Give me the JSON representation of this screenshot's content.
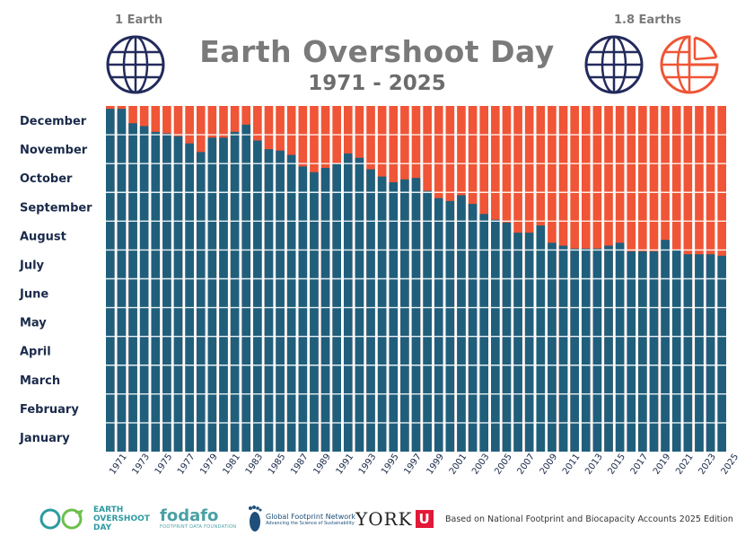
{
  "header": {
    "title": "Earth Overshoot Day",
    "subtitle": "1971 - 2025",
    "left_globe_label": "1 Earth",
    "right_globe_label": "1.8 Earths"
  },
  "colors": {
    "budget": "#1f5f7c",
    "overshoot": "#ef5536",
    "globe_navy": "#232b5c",
    "title_gray": "#7a7a7a"
  },
  "chart_data": {
    "type": "bar",
    "title": "Earth Overshoot Day",
    "subtitle": "1971 - 2025",
    "xlabel": "",
    "ylabel": "",
    "y_unit": "month of year (0 = 1 January, 12 = 31 December)",
    "ylim": [
      0,
      12
    ],
    "y_tick_labels": [
      "January",
      "February",
      "March",
      "April",
      "May",
      "June",
      "July",
      "August",
      "September",
      "October",
      "November",
      "December"
    ],
    "x_tick_labels": [
      "1971",
      "1973",
      "1975",
      "1977",
      "1979",
      "1981",
      "1983",
      "1985",
      "1987",
      "1989",
      "1991",
      "1993",
      "1995",
      "1997",
      "1999",
      "2001",
      "2003",
      "2005",
      "2007",
      "2009",
      "2011",
      "2013",
      "2015",
      "2017",
      "2019",
      "2021",
      "2023",
      "2025"
    ],
    "x": [
      1971,
      1972,
      1973,
      1974,
      1975,
      1976,
      1977,
      1978,
      1979,
      1980,
      1981,
      1982,
      1983,
      1984,
      1985,
      1986,
      1987,
      1988,
      1989,
      1990,
      1991,
      1992,
      1993,
      1994,
      1995,
      1996,
      1997,
      1998,
      1999,
      2000,
      2001,
      2002,
      2003,
      2004,
      2005,
      2006,
      2007,
      2008,
      2009,
      2010,
      2011,
      2012,
      2013,
      2014,
      2015,
      2016,
      2017,
      2018,
      2019,
      2020,
      2021,
      2022,
      2023,
      2024,
      2025
    ],
    "series": [
      {
        "name": "",
        "color": "#1f5f7c",
        "values": [
          11.9,
          11.9,
          11.4,
          11.3,
          11.1,
          11.05,
          10.95,
          10.7,
          10.4,
          10.9,
          10.9,
          11.1,
          11.35,
          10.8,
          10.5,
          10.45,
          10.3,
          9.9,
          9.7,
          9.85,
          10.0,
          10.35,
          10.2,
          9.8,
          9.55,
          9.35,
          9.45,
          9.5,
          9.05,
          8.8,
          8.7,
          8.9,
          8.6,
          8.25,
          8.05,
          7.95,
          7.6,
          7.6,
          7.85,
          7.25,
          7.15,
          7.05,
          7.05,
          7.05,
          7.15,
          7.25,
          6.95,
          6.95,
          6.95,
          7.35,
          7.0,
          6.85,
          6.85,
          6.85,
          6.8
        ]
      }
    ],
    "overshoot_color": "#ef5536",
    "grid": true,
    "legend": "none"
  },
  "footer": {
    "eod_logo_text": [
      "EARTH",
      "OVERSHOOT",
      "DAY"
    ],
    "fodafo_name": "fodafo",
    "fodafo_sub": "FOOTPRINT DATA FOUNDATION",
    "gfn_name": "Global Footprint Network",
    "gfn_sub": "Advancing the Science of Sustainability",
    "york_name": "YORK",
    "york_mark": "U",
    "source_note": "Based on National Footprint and Biocapacity Accounts 2025 Edition"
  }
}
